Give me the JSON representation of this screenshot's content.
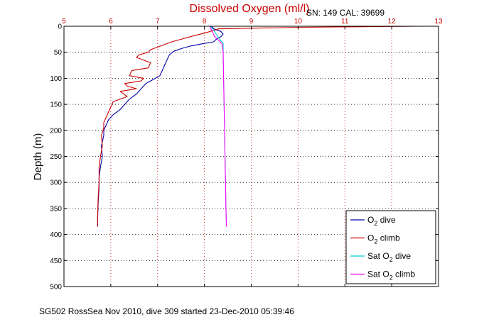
{
  "chart_data": {
    "type": "line",
    "title": "Dissolved Oxygen (ml/l)",
    "subtitle": "SN: 149  CAL: 39699",
    "ylabel": "Depth (m)",
    "footer": "SG502 RossSea Nov 2010, dive 309 started 23-Dec-2010 05:39:46",
    "xlim": [
      5,
      13
    ],
    "ylim": [
      0,
      500
    ],
    "y_reversed": true,
    "grid": true,
    "x_ticks": [
      "5",
      "6",
      "7",
      "8",
      "9",
      "10",
      "11",
      "12",
      "13"
    ],
    "y_ticks": [
      "0",
      "50",
      "100",
      "150",
      "200",
      "250",
      "300",
      "350",
      "400",
      "450",
      "500"
    ],
    "legend": {
      "placement": "bottom-right",
      "entries": [
        {
          "base": "O",
          "sub": "2",
          "suffix": " dive"
        },
        {
          "base": "O",
          "sub": "2",
          "suffix": " climb"
        },
        {
          "base": "Sat O",
          "sub": "2",
          "suffix": " dive"
        },
        {
          "base": "Sat O",
          "sub": "2",
          "suffix": " climb"
        }
      ]
    },
    "series": [
      {
        "key": "o2_dive",
        "color": "#0000aa",
        "x": [
          8.15,
          8.2,
          8.35,
          8.4,
          8.35,
          8.25,
          8.2,
          8.0,
          7.7,
          7.5,
          7.35,
          7.25,
          7.2,
          7.15,
          7.1,
          7.05,
          6.95,
          6.85,
          6.75,
          6.7,
          6.65,
          6.6,
          6.55,
          6.4,
          6.3,
          6.2,
          6.05,
          5.95,
          5.9,
          5.85,
          5.85,
          5.8,
          5.82,
          5.78,
          5.75,
          5.75,
          5.73,
          5.72,
          5.72
        ],
        "y": [
          0,
          5,
          10,
          15,
          20,
          25,
          30,
          33,
          38,
          43,
          48,
          55,
          65,
          75,
          85,
          95,
          100,
          105,
          110,
          115,
          120,
          125,
          130,
          140,
          150,
          160,
          170,
          180,
          190,
          200,
          210,
          230,
          250,
          270,
          290,
          310,
          340,
          370,
          385
        ]
      },
      {
        "key": "o2_climb",
        "color": "#cc0000",
        "x": [
          12.6,
          10.0,
          8.3,
          8.05,
          7.7,
          7.3,
          7.0,
          6.85,
          6.8,
          6.6,
          6.55,
          6.85,
          6.8,
          6.45,
          6.4,
          6.7,
          6.65,
          6.3,
          6.35,
          6.55,
          6.2,
          6.35,
          6.05,
          6.0,
          5.95,
          5.9,
          5.85,
          5.85,
          5.8,
          5.82,
          5.78,
          5.75,
          5.75,
          5.73,
          5.72,
          5.72
        ],
        "y": [
          0,
          2,
          5,
          12,
          20,
          30,
          40,
          45,
          50,
          55,
          60,
          70,
          80,
          85,
          95,
          100,
          105,
          110,
          115,
          120,
          125,
          135,
          145,
          155,
          165,
          175,
          185,
          195,
          210,
          230,
          250,
          270,
          300,
          330,
          360,
          385
        ]
      },
      {
        "key": "sat_dive",
        "color": "#00cccc",
        "x": [
          8.12,
          8.18,
          8.25,
          8.3,
          8.35,
          8.4,
          8.4,
          8.41,
          8.42,
          8.43,
          8.44,
          8.45,
          8.46,
          8.47
        ],
        "y": [
          0,
          5,
          15,
          22,
          28,
          32,
          50,
          100,
          150,
          200,
          250,
          300,
          350,
          385
        ]
      },
      {
        "key": "sat_climb",
        "color": "#ff00ff",
        "x": [
          8.12,
          8.14,
          8.18,
          8.22,
          8.28,
          8.34,
          8.38,
          8.4,
          8.41,
          8.42,
          8.43,
          8.44,
          8.45,
          8.46,
          8.47
        ],
        "y": [
          0,
          5,
          12,
          20,
          25,
          30,
          35,
          50,
          100,
          150,
          200,
          250,
          300,
          350,
          385
        ]
      }
    ]
  }
}
